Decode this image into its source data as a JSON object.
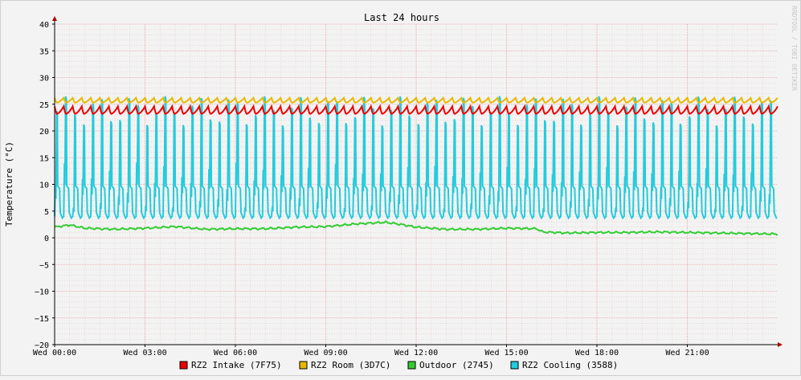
{
  "chart_data": {
    "type": "line",
    "title": "Last 24 hours",
    "ylabel": "Temperature (°C)",
    "xlabel": "",
    "ylim": [
      -20,
      40
    ],
    "yticks": [
      -20,
      -15,
      -10,
      -5,
      0,
      5,
      10,
      15,
      20,
      25,
      30,
      35,
      40
    ],
    "ytick_labels": [
      "−20",
      "−15",
      "−10",
      "−5",
      "0",
      "5",
      "10",
      "15",
      "20",
      "25",
      "30",
      "35",
      "40"
    ],
    "x_ticks": [
      "Wed 00:00",
      "Wed 03:00",
      "Wed 06:00",
      "Wed 09:00",
      "Wed 12:00",
      "Wed 15:00",
      "Wed 18:00",
      "Wed 21:00"
    ],
    "x_range_hours": [
      0,
      24
    ],
    "grid": true,
    "legend_placement": "bottom",
    "watermark": "RRDTOOL / TOBI OETIKER",
    "series": [
      {
        "name": "RZ2 Intake (7F75)",
        "color": "#ee0000",
        "pattern": {
          "type": "oscillating",
          "low": 23.2,
          "high": 24.6,
          "period_h": 0.3
        }
      },
      {
        "name": "RZ2 Room (3D7C)",
        "color": "#e8b800",
        "pattern": {
          "type": "oscillating",
          "low": 25.3,
          "high": 26.2,
          "period_h": 0.3
        }
      },
      {
        "name": "Outdoor (2745)",
        "color": "#33cc33",
        "points": [
          [
            0,
            2.0
          ],
          [
            0.5,
            2.4
          ],
          [
            1,
            1.8
          ],
          [
            2,
            1.6
          ],
          [
            3,
            1.8
          ],
          [
            4,
            2.1
          ],
          [
            5,
            1.6
          ],
          [
            6,
            1.7
          ],
          [
            7,
            1.7
          ],
          [
            8,
            2.0
          ],
          [
            9,
            2.1
          ],
          [
            10,
            2.6
          ],
          [
            11,
            2.9
          ],
          [
            11.5,
            2.5
          ],
          [
            12,
            2.0
          ],
          [
            13,
            1.6
          ],
          [
            14,
            1.6
          ],
          [
            15,
            1.8
          ],
          [
            16,
            1.7
          ],
          [
            16.2,
            1.1
          ],
          [
            17,
            0.9
          ],
          [
            18,
            1.0
          ],
          [
            19,
            1.0
          ],
          [
            20,
            1.1
          ],
          [
            21,
            1.0
          ],
          [
            22,
            0.9
          ],
          [
            23,
            0.8
          ],
          [
            24,
            0.7
          ]
        ]
      },
      {
        "name": "RZ2 Cooling (3588)",
        "color": "#22ccdd",
        "pattern": {
          "type": "spiky",
          "base": 3.7,
          "peak_max": 26.5,
          "peak_min": 21.0,
          "period_h": 0.3
        }
      }
    ]
  }
}
